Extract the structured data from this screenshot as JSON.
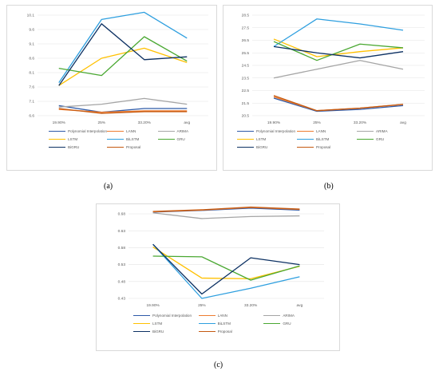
{
  "colors": {
    "Polynomial Interpolation": "#2e5aa8",
    "LANN": "#ed7d31",
    "ARIMA": "#a5a5a5",
    "LSTM": "#ffc000",
    "BiLSTM": "#2e9fdf",
    "GRU": "#4aa832",
    "BiGRU": "#0d3163",
    "Proposal": "#c55a11"
  },
  "legend_order": [
    "Polynomial Interpolation",
    "LANN",
    "ARIMA",
    "LSTM",
    "BiLSTM",
    "GRU",
    "BiGRU",
    "Proposal"
  ],
  "panels": [
    {
      "id": "a",
      "caption": "(a)",
      "chart_data": {
        "type": "line",
        "categories": [
          "19.90%",
          "25%",
          "33.20%",
          "avg"
        ],
        "ylim": [
          6.6,
          10.1
        ],
        "yticks": [
          "6.6",
          "7.1",
          "7.6",
          "8.1",
          "8.6",
          "9.1",
          "9.6",
          "10.1"
        ],
        "legend_position": "bottom",
        "grid": true,
        "series": [
          {
            "name": "Polynomial Interpolation",
            "values": [
              6.95,
              6.72,
              6.85,
              6.85
            ]
          },
          {
            "name": "LANN",
            "values": [
              6.82,
              6.72,
              6.77,
              6.77
            ]
          },
          {
            "name": "ARIMA",
            "values": [
              6.9,
              7.0,
              7.2,
              7.0
            ]
          },
          {
            "name": "LSTM",
            "values": [
              7.65,
              8.6,
              8.95,
              8.45
            ]
          },
          {
            "name": "BiLSTM",
            "values": [
              7.75,
              9.95,
              10.2,
              9.3
            ]
          },
          {
            "name": "GRU",
            "values": [
              8.25,
              8.0,
              9.35,
              8.5
            ]
          },
          {
            "name": "BiGRU",
            "values": [
              7.65,
              9.8,
              8.55,
              8.65
            ]
          },
          {
            "name": "Proposal",
            "values": [
              6.85,
              6.68,
              6.74,
              6.74
            ]
          }
        ]
      }
    },
    {
      "id": "b",
      "caption": "(b)",
      "chart_data": {
        "type": "line",
        "categories": [
          "19.90%",
          "25%",
          "33.20%",
          "avg"
        ],
        "ylim": [
          20.5,
          28.5
        ],
        "yticks": [
          "20.5",
          "21.5",
          "22.5",
          "23.5",
          "24.5",
          "25.5",
          "26.5",
          "27.5",
          "28.5"
        ],
        "legend_position": "bottom",
        "grid": true,
        "series": [
          {
            "name": "Polynomial Interpolation",
            "values": [
              21.9,
              20.85,
              21.0,
              21.3
            ]
          },
          {
            "name": "LANN",
            "values": [
              22.0,
              20.9,
              21.1,
              21.4
            ]
          },
          {
            "name": "ARIMA",
            "values": [
              23.5,
              24.2,
              24.9,
              24.2
            ]
          },
          {
            "name": "LSTM",
            "values": [
              26.6,
              25.2,
              25.6,
              25.9
            ]
          },
          {
            "name": "BiLSTM",
            "values": [
              26.0,
              28.2,
              27.8,
              27.3
            ]
          },
          {
            "name": "GRU",
            "values": [
              26.4,
              24.9,
              26.2,
              25.9
            ]
          },
          {
            "name": "BiGRU",
            "values": [
              26.0,
              25.5,
              25.1,
              25.6
            ]
          },
          {
            "name": "Proposal",
            "values": [
              22.1,
              20.9,
              21.1,
              21.4
            ]
          }
        ]
      }
    },
    {
      "id": "c",
      "caption": "(c)",
      "chart_data": {
        "type": "line",
        "categories": [
          "19.90%",
          "25%",
          "33.20%",
          "avg"
        ],
        "ylim": [
          0.43,
          0.68
        ],
        "yticks": [
          "0.43",
          "0.48",
          "0.53",
          "0.58",
          "0.63",
          "0.68"
        ],
        "legend_position": "bottom",
        "grid": true,
        "series": [
          {
            "name": "Polynomial Interpolation",
            "values": [
              0.685,
              0.69,
              0.697,
              0.691
            ]
          },
          {
            "name": "LANN",
            "values": [
              0.686,
              0.691,
              0.699,
              0.693
            ]
          },
          {
            "name": "ARIMA",
            "values": [
              0.683,
              0.666,
              0.672,
              0.674
            ]
          },
          {
            "name": "LSTM",
            "values": [
              0.582,
              0.49,
              0.488,
              0.525
            ]
          },
          {
            "name": "BiLSTM",
            "values": [
              0.59,
              0.43,
              0.46,
              0.494
            ]
          },
          {
            "name": "GRU",
            "values": [
              0.555,
              0.553,
              0.484,
              0.526
            ]
          },
          {
            "name": "BiGRU",
            "values": [
              0.59,
              0.443,
              0.55,
              0.53
            ]
          },
          {
            "name": "Proposal",
            "values": [
              0.687,
              0.692,
              0.7,
              0.694
            ]
          }
        ]
      }
    }
  ]
}
